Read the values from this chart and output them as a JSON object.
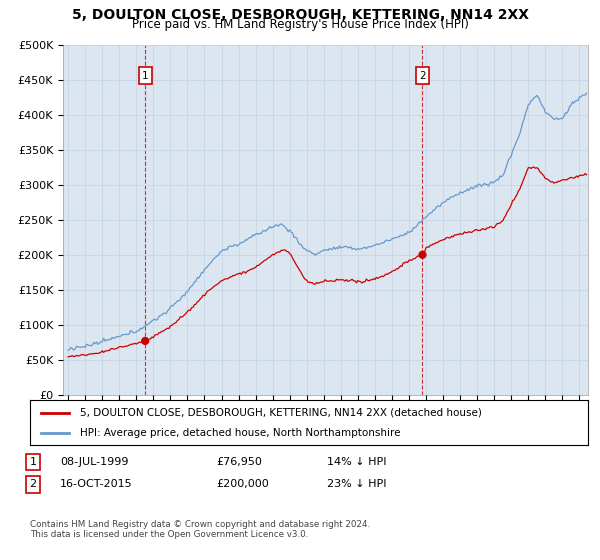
{
  "title": "5, DOULTON CLOSE, DESBOROUGH, KETTERING, NN14 2XX",
  "subtitle": "Price paid vs. HM Land Registry's House Price Index (HPI)",
  "ylim": [
    0,
    500000
  ],
  "yticks": [
    0,
    50000,
    100000,
    150000,
    200000,
    250000,
    300000,
    350000,
    400000,
    450000,
    500000
  ],
  "ytick_labels": [
    "£0",
    "£50K",
    "£100K",
    "£150K",
    "£200K",
    "£250K",
    "£300K",
    "£350K",
    "£400K",
    "£450K",
    "£500K"
  ],
  "xlim_start": 1994.7,
  "xlim_end": 2025.5,
  "background_color": "#dce6f1",
  "sale1_date": 1999.52,
  "sale1_price": 76950,
  "sale2_date": 2015.79,
  "sale2_price": 200000,
  "legend_line1": "5, DOULTON CLOSE, DESBOROUGH, KETTERING, NN14 2XX (detached house)",
  "legend_line2": "HPI: Average price, detached house, North Northamptonshire",
  "footer": "Contains HM Land Registry data © Crown copyright and database right 2024.\nThis data is licensed under the Open Government Licence v3.0.",
  "line_color_red": "#cc0000",
  "line_color_blue": "#6699cc",
  "grid_color": "#c8d8e8",
  "title_fontsize": 10,
  "subtitle_fontsize": 8.5,
  "tick_fontsize": 8
}
